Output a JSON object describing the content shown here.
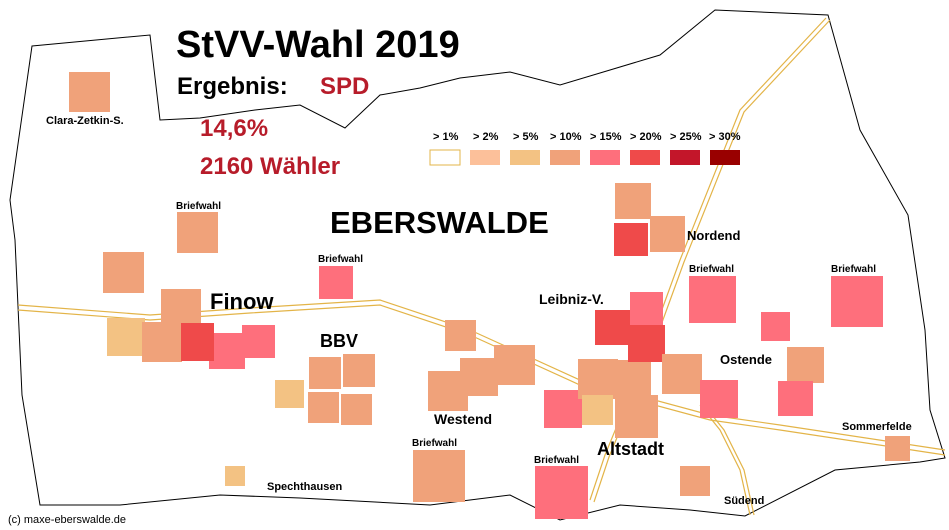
{
  "title": "StVV-Wahl 2019",
  "result_label": "Ergebnis:",
  "party": "SPD",
  "percent": "14,6%",
  "voters": "2160 Wähler",
  "city": "EBERSWALDE",
  "credit": "(c) maxe-eberswalde.de",
  "colors": {
    "title_red": "#b71c2a",
    "road": "#e3b448",
    "boundary": "#000000",
    "c1": "#ffffff",
    "c2": "#fcc09a",
    "c5": "#f3c283",
    "c10": "#f0a27a",
    "c15": "#fe6f7c",
    "c20": "#ef4a4a",
    "c25": "#c3162a",
    "c30": "#990000"
  },
  "legend": {
    "items": [
      {
        "label": "> 1%",
        "color": "#ffffff"
      },
      {
        "label": "> 2%",
        "color": "#fcc09a"
      },
      {
        "label": "> 5%",
        "color": "#f3c283"
      },
      {
        "label": "> 10%",
        "color": "#f0a27a"
      },
      {
        "label": "> 15%",
        "color": "#fe6f7c"
      },
      {
        "label": "> 20%",
        "color": "#ef4a4a"
      },
      {
        "label": "> 25%",
        "color": "#c3162a"
      },
      {
        "label": "> 30%",
        "color": "#990000"
      }
    ]
  },
  "places": {
    "clara": "Clara-Zetkin-S.",
    "finow": "Finow",
    "bbv": "BBV",
    "westend": "Westend",
    "altstadt": "Altstadt",
    "nordend": "Nordend",
    "leibniz": "Leibniz-V.",
    "ostende": "Ostende",
    "sommerfelde": "Sommerfelde",
    "suedend": "Südend",
    "spechthausen": "Spechthausen"
  },
  "briefwahl_label": "Briefwahl"
}
